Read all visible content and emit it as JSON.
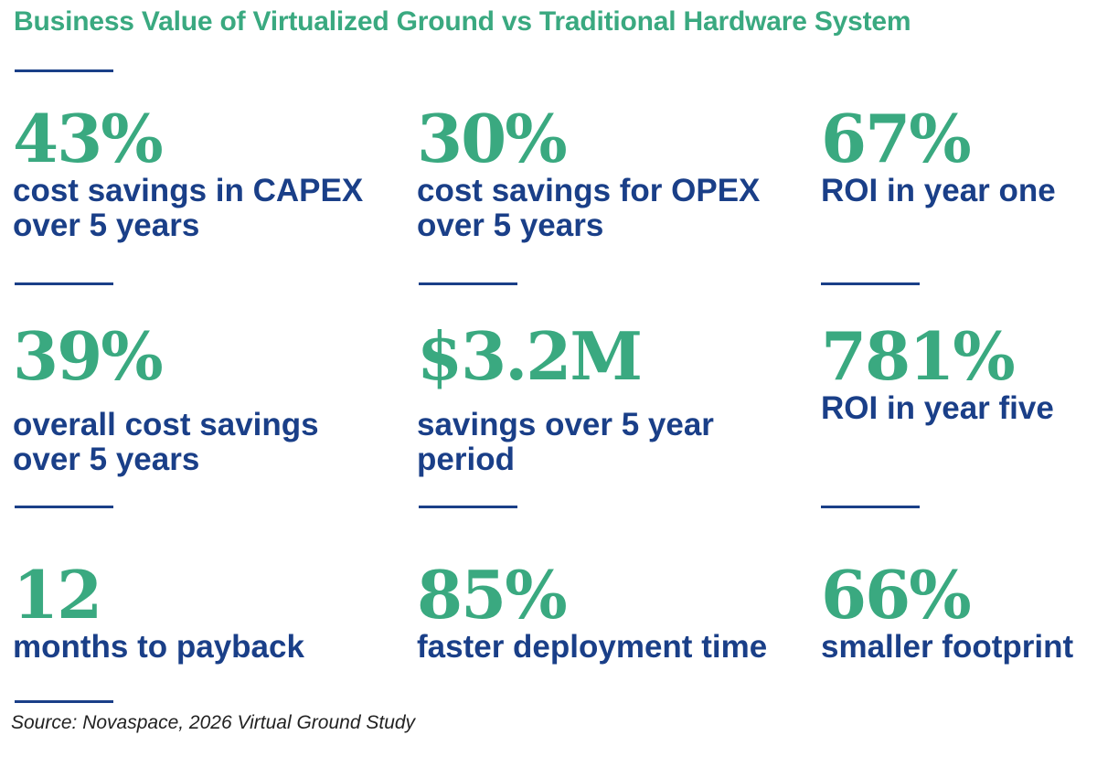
{
  "title": "Business Value of Virtualized Ground vs Traditional Hardware System",
  "stats": [
    {
      "value": "43%",
      "line1": "cost savings in CAPEX",
      "line2": "over 5 years"
    },
    {
      "value": "30%",
      "line1": "cost savings for OPEX",
      "line2": "over 5 years"
    },
    {
      "value": "67%",
      "line1": "ROI in year one",
      "line2": ""
    },
    {
      "value": "39%",
      "line1": "overall cost savings",
      "line2": "over 5 years"
    },
    {
      "value": "$3.2M",
      "line1": "savings over 5 year",
      "line2": "period"
    },
    {
      "value": "781%",
      "line1": "ROI in year five",
      "line2": ""
    },
    {
      "value": "12",
      "line1": "months to payback",
      "line2": ""
    },
    {
      "value": "85%",
      "line1": "faster deployment time",
      "line2": ""
    },
    {
      "value": "66%",
      "line1": "smaller footprint",
      "line2": ""
    }
  ],
  "source": "Source: Novaspace, 2026 Virtual Ground Study",
  "colors": {
    "accent_green": "#3aa980",
    "navy": "#1a3f88"
  }
}
